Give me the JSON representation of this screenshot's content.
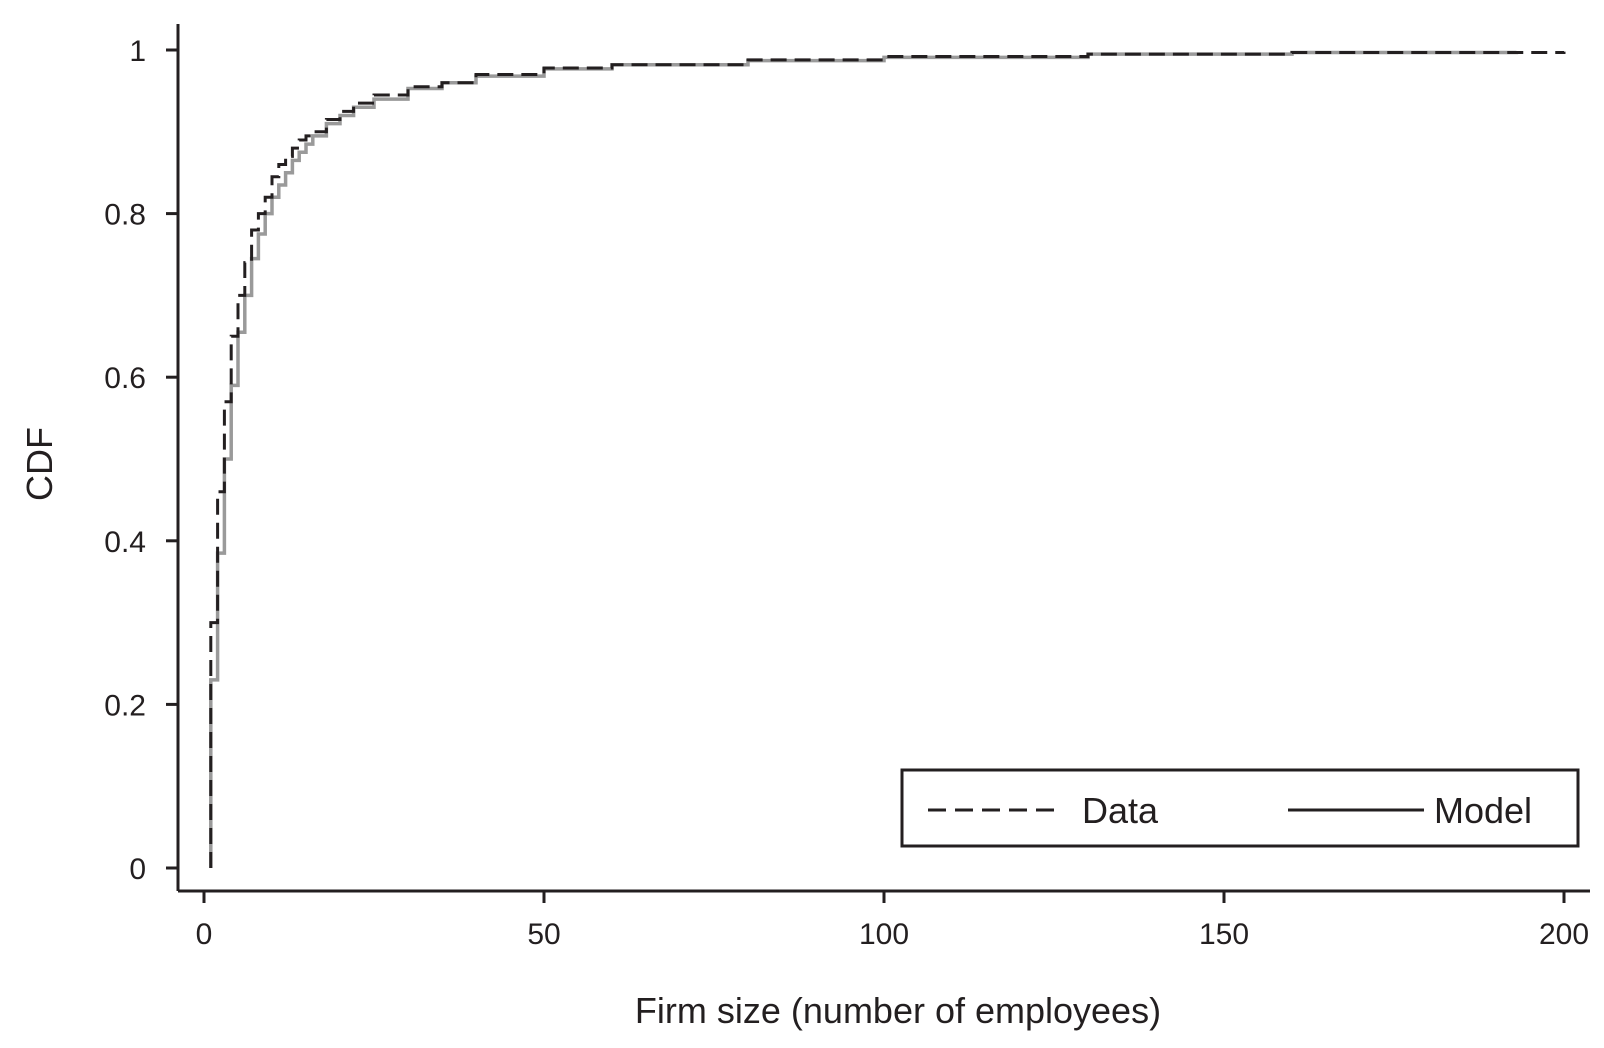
{
  "chart_data": {
    "type": "line",
    "title": "",
    "xlabel": "Firm size (number of employees)",
    "ylabel": "CDF",
    "xlim": [
      0,
      200
    ],
    "ylim": [
      0,
      1
    ],
    "x_ticks": [
      0,
      50,
      100,
      150,
      200
    ],
    "x_tick_labels": [
      "0",
      "50",
      "100",
      "150",
      "200"
    ],
    "y_ticks": [
      0,
      0.2,
      0.4,
      0.6,
      0.8,
      1
    ],
    "y_tick_labels": [
      "0",
      "0.2",
      "0.4",
      "0.6",
      "0.8",
      "1"
    ],
    "grid": false,
    "legend_position": "bottom-right",
    "series": [
      {
        "name": "Data",
        "style": "dashed",
        "color": "#231f20",
        "x": [
          1,
          2,
          3,
          4,
          5,
          6,
          7,
          8,
          9,
          10,
          11,
          12,
          13,
          14,
          15,
          16,
          18,
          20,
          22,
          25,
          30,
          35,
          40,
          50,
          60,
          80,
          100,
          130,
          160,
          200
        ],
        "y": [
          0.3,
          0.46,
          0.57,
          0.65,
          0.7,
          0.74,
          0.78,
          0.8,
          0.82,
          0.845,
          0.86,
          0.87,
          0.88,
          0.89,
          0.895,
          0.9,
          0.915,
          0.925,
          0.935,
          0.945,
          0.955,
          0.96,
          0.97,
          0.978,
          0.982,
          0.988,
          0.992,
          0.995,
          0.997,
          0.998
        ]
      },
      {
        "name": "Model",
        "style": "solid",
        "color": "#9a9a9a",
        "x": [
          1,
          2,
          3,
          4,
          5,
          6,
          7,
          8,
          9,
          10,
          11,
          12,
          13,
          14,
          15,
          16,
          18,
          20,
          22,
          25,
          30,
          35,
          40,
          50,
          60,
          80,
          100,
          130,
          160,
          193
        ],
        "y": [
          0.23,
          0.385,
          0.5,
          0.59,
          0.655,
          0.7,
          0.745,
          0.775,
          0.8,
          0.82,
          0.835,
          0.85,
          0.865,
          0.875,
          0.885,
          0.895,
          0.91,
          0.92,
          0.93,
          0.94,
          0.953,
          0.96,
          0.968,
          0.977,
          0.982,
          0.987,
          0.991,
          0.995,
          0.997,
          0.998
        ]
      }
    ]
  }
}
